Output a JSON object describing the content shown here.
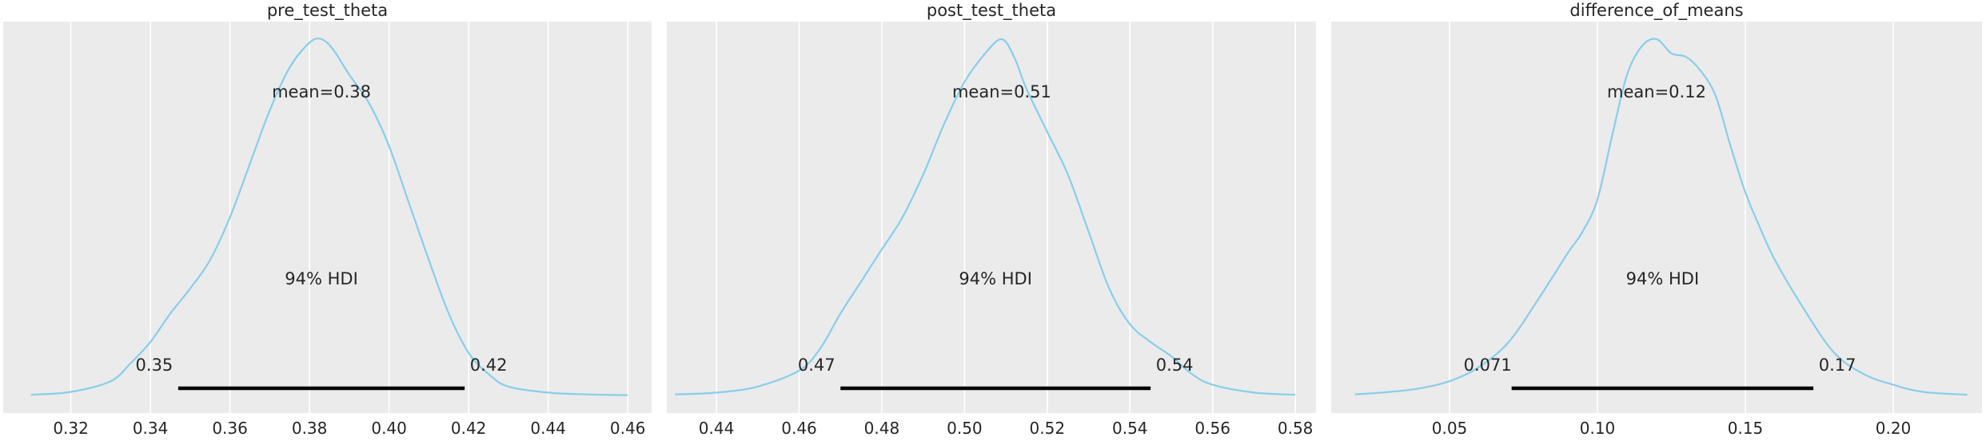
{
  "chart_data": [
    {
      "type": "area",
      "title": "pre_test_theta",
      "xlabel": "",
      "ylabel": "",
      "xlim": [
        0.303,
        0.466
      ],
      "xticks": [
        0.32,
        0.34,
        0.36,
        0.38,
        0.4,
        0.42,
        0.44,
        0.46
      ],
      "tick_labels": [
        "0.32",
        "0.34",
        "0.36",
        "0.38",
        "0.40",
        "0.42",
        "0.44",
        "0.46"
      ],
      "grid": true,
      "line_color": "#87ceeb",
      "hdi_color": "#000000",
      "mean_label": "mean=0.38",
      "hdi_label": "94% HDI",
      "hdi": [
        0.347,
        0.419
      ],
      "hdi_low_label": "0.35",
      "hdi_high_label": "0.42",
      "series": [
        {
          "x": [
            0.31,
            0.32,
            0.33,
            0.335,
            0.34,
            0.345,
            0.35,
            0.355,
            0.36,
            0.365,
            0.37,
            0.375,
            0.38,
            0.383,
            0.386,
            0.39,
            0.395,
            0.4,
            0.405,
            0.41,
            0.415,
            0.42,
            0.425,
            0.43,
            0.44,
            0.45,
            0.46
          ],
          "y": [
            0.002,
            0.01,
            0.04,
            0.09,
            0.15,
            0.23,
            0.3,
            0.38,
            0.5,
            0.65,
            0.8,
            0.92,
            0.99,
            1.0,
            0.97,
            0.9,
            0.82,
            0.7,
            0.54,
            0.38,
            0.23,
            0.12,
            0.06,
            0.025,
            0.008,
            0.003,
            0.001
          ]
        }
      ]
    },
    {
      "type": "area",
      "title": "post_test_theta",
      "xlabel": "",
      "ylabel": "",
      "xlim": [
        0.428,
        0.585
      ],
      "xticks": [
        0.44,
        0.46,
        0.48,
        0.5,
        0.52,
        0.54,
        0.56,
        0.58
      ],
      "tick_labels": [
        "0.44",
        "0.46",
        "0.48",
        "0.50",
        "0.52",
        "0.54",
        "0.56",
        "0.58"
      ],
      "grid": true,
      "line_color": "#87ceeb",
      "hdi_color": "#000000",
      "mean_label": "mean=0.51",
      "hdi_label": "94% HDI",
      "hdi": [
        0.47,
        0.545
      ],
      "hdi_low_label": "0.47",
      "hdi_high_label": "0.54",
      "series": [
        {
          "x": [
            0.43,
            0.44,
            0.45,
            0.46,
            0.465,
            0.47,
            0.475,
            0.48,
            0.485,
            0.49,
            0.495,
            0.5,
            0.505,
            0.509,
            0.512,
            0.515,
            0.52,
            0.525,
            0.53,
            0.535,
            0.54,
            0.545,
            0.55,
            0.555,
            0.56,
            0.57,
            0.58
          ],
          "y": [
            0.003,
            0.008,
            0.025,
            0.07,
            0.13,
            0.23,
            0.32,
            0.41,
            0.5,
            0.62,
            0.76,
            0.88,
            0.96,
            1.0,
            0.95,
            0.86,
            0.74,
            0.62,
            0.46,
            0.3,
            0.2,
            0.15,
            0.11,
            0.06,
            0.03,
            0.008,
            0.002
          ]
        }
      ]
    },
    {
      "type": "area",
      "title": "difference_of_means",
      "xlabel": "",
      "ylabel": "",
      "xlim": [
        0.01,
        0.23
      ],
      "xticks": [
        0.05,
        0.1,
        0.15,
        0.2
      ],
      "tick_labels": [
        "0.05",
        "0.10",
        "0.15",
        "0.20"
      ],
      "grid": true,
      "line_color": "#87ceeb",
      "hdi_color": "#000000",
      "mean_label": "mean=0.12",
      "hdi_label": "94% HDI",
      "hdi": [
        0.071,
        0.173
      ],
      "hdi_low_label": "0.071",
      "hdi_high_label": "0.17",
      "series": [
        {
          "x": [
            0.018,
            0.03,
            0.04,
            0.05,
            0.06,
            0.07,
            0.08,
            0.09,
            0.095,
            0.1,
            0.105,
            0.11,
            0.115,
            0.12,
            0.125,
            0.13,
            0.135,
            0.14,
            0.145,
            0.15,
            0.155,
            0.16,
            0.17,
            0.18,
            0.19,
            0.2,
            0.21,
            0.225
          ],
          "y": [
            0.003,
            0.01,
            0.02,
            0.04,
            0.08,
            0.15,
            0.27,
            0.4,
            0.46,
            0.55,
            0.73,
            0.9,
            0.98,
            1.0,
            0.96,
            0.95,
            0.91,
            0.84,
            0.7,
            0.57,
            0.47,
            0.38,
            0.24,
            0.12,
            0.06,
            0.03,
            0.01,
            0.002
          ]
        }
      ]
    }
  ]
}
